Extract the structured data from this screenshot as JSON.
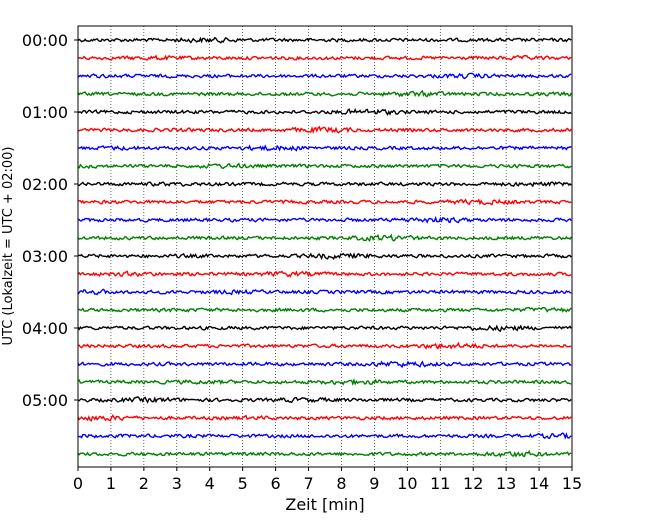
{
  "chart_data": {
    "type": "line",
    "title": "",
    "xlabel": "Zeit  [min]",
    "ylabel": "UTC (Lokalzeit = UTC + 02:00)",
    "xlim": [
      0,
      15
    ],
    "x_ticks": [
      "0",
      "1",
      "2",
      "3",
      "4",
      "5",
      "6",
      "7",
      "8",
      "9",
      "10",
      "11",
      "12",
      "13",
      "14",
      "15"
    ],
    "y_ticks": [
      {
        "label": "00:00",
        "row": 0
      },
      {
        "label": "01:00",
        "row": 4
      },
      {
        "label": "02:00",
        "row": 8
      },
      {
        "label": "03:00",
        "row": 12
      },
      {
        "label": "04:00",
        "row": 16
      },
      {
        "label": "05:00",
        "row": 20
      }
    ],
    "rows": 24,
    "minutes_per_row": 15,
    "row_colors": [
      "#000000",
      "#ff0000",
      "#0000ff",
      "#008000"
    ],
    "grid": "vertical dotted lines at each minute",
    "legend": "none"
  }
}
